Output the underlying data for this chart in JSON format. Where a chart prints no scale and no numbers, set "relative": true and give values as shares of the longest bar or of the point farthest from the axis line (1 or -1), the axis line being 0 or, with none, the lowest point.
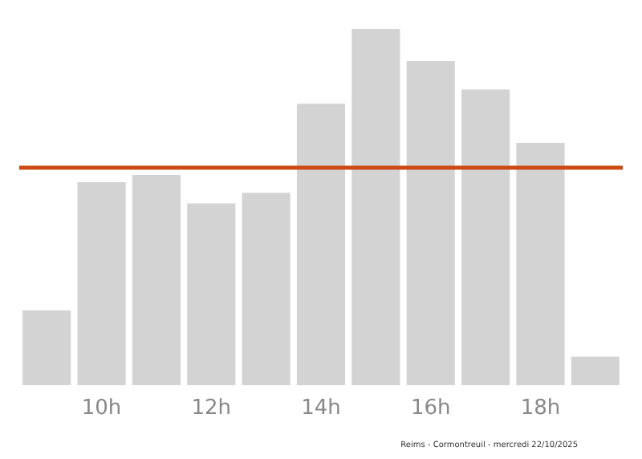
{
  "chart_data": {
    "type": "bar",
    "relative": true,
    "categories": [
      null,
      "10h",
      null,
      "12h",
      null,
      "14h",
      null,
      "16h",
      null,
      "18h",
      null
    ],
    "values": [
      0.21,
      0.57,
      0.59,
      0.51,
      0.54,
      0.79,
      1,
      0.91,
      0.83,
      0.68,
      0.08
    ],
    "color": "#d3d3d3",
    "ref_lines": [
      {
        "axis": "y",
        "value": 0.61,
        "color": "#cc4b14",
        "line_style": "solid"
      }
    ],
    "annotations": [
      "Reims - Cormontreuil - mercredi 22/10/2025"
    ],
    "tick_labels": "x"
  }
}
